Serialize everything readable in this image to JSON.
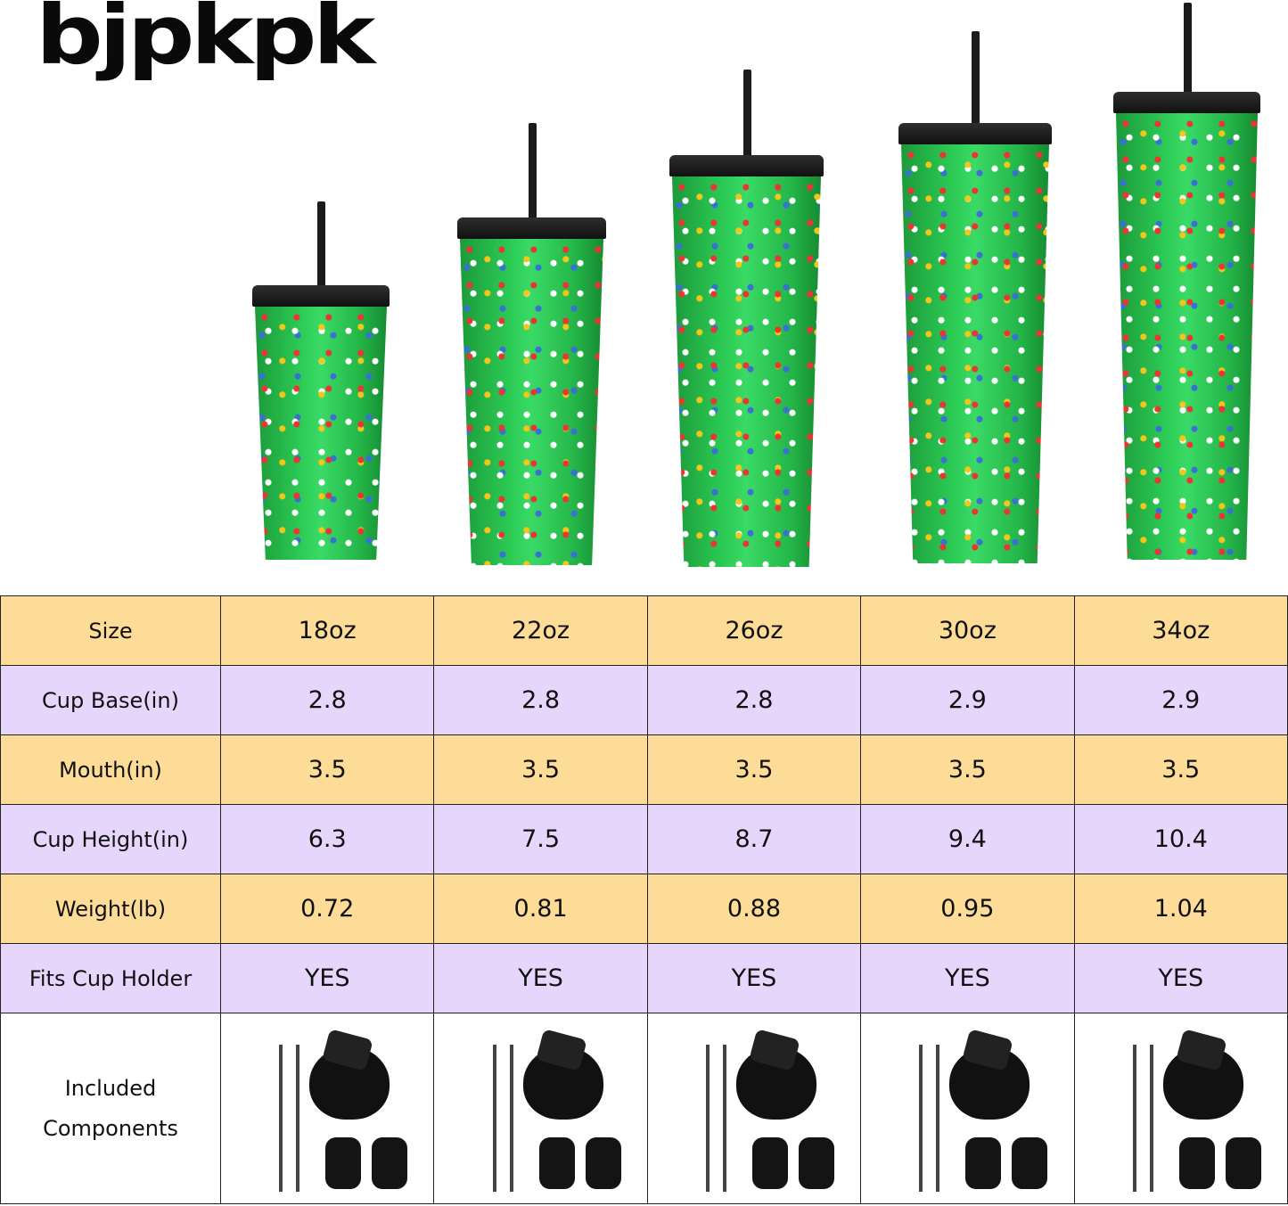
{
  "brand": {
    "logo_text": "bjpkpk"
  },
  "colors": {
    "header_row": "#fddc98",
    "alt_row": "#e6d6fb",
    "tumbler": "#2ccb55",
    "lid": "#111111"
  },
  "tumblers": [
    {
      "size": "18oz"
    },
    {
      "size": "22oz"
    },
    {
      "size": "26oz"
    },
    {
      "size": "30oz"
    },
    {
      "size": "34oz"
    }
  ],
  "table": {
    "rows": [
      {
        "label": "Size",
        "values": [
          "18oz",
          "22oz",
          "26oz",
          "30oz",
          "34oz"
        ]
      },
      {
        "label": "Cup Base(in)",
        "values": [
          "2.8",
          "2.8",
          "2.8",
          "2.9",
          "2.9"
        ]
      },
      {
        "label": "Mouth(in)",
        "values": [
          "3.5",
          "3.5",
          "3.5",
          "3.5",
          "3.5"
        ]
      },
      {
        "label": "Cup Height(in)",
        "values": [
          "6.3",
          "7.5",
          "8.7",
          "9.4",
          "10.4"
        ]
      },
      {
        "label": "Weight(lb)",
        "values": [
          "0.72",
          "0.81",
          "0.88",
          "0.95",
          "1.04"
        ]
      },
      {
        "label": "Fits Cup Holder",
        "values": [
          "YES",
          "YES",
          "YES",
          "YES",
          "YES"
        ]
      }
    ],
    "components_label_1": "Included",
    "components_label_2": "Components",
    "components_items": [
      "straw",
      "straw",
      "flip lid",
      "plug",
      "plug"
    ]
  }
}
